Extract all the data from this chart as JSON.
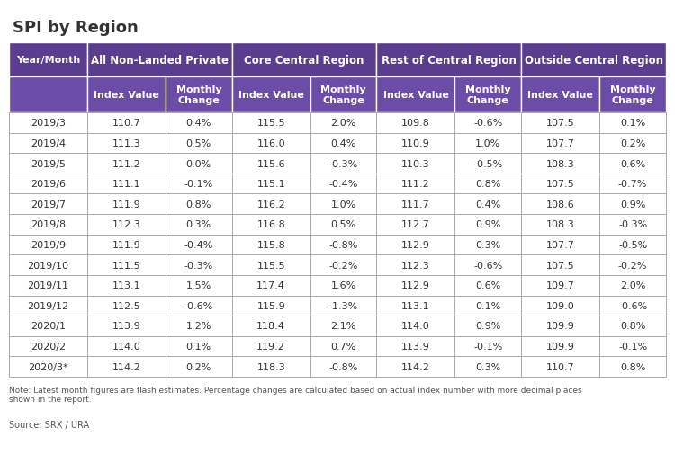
{
  "title": "SPI by Region",
  "col_groups": [
    {
      "label": "All Non-Landed Private"
    },
    {
      "label": "Core Central Region"
    },
    {
      "label": "Rest of Central Region"
    },
    {
      "label": "Outside Central Region"
    }
  ],
  "sub_headers": [
    "Index Value",
    "Monthly\nChange",
    "Index Value",
    "Monthly\nChange",
    "Index Value",
    "Monthly\nChange",
    "Index Value",
    "Monthly\nChange"
  ],
  "row_header": "Year/Month",
  "rows": [
    [
      "2019/3",
      "110.7",
      "0.4%",
      "115.5",
      "2.0%",
      "109.8",
      "-0.6%",
      "107.5",
      "0.1%"
    ],
    [
      "2019/4",
      "111.3",
      "0.5%",
      "116.0",
      "0.4%",
      "110.9",
      "1.0%",
      "107.7",
      "0.2%"
    ],
    [
      "2019/5",
      "111.2",
      "0.0%",
      "115.6",
      "-0.3%",
      "110.3",
      "-0.5%",
      "108.3",
      "0.6%"
    ],
    [
      "2019/6",
      "111.1",
      "-0.1%",
      "115.1",
      "-0.4%",
      "111.2",
      "0.8%",
      "107.5",
      "-0.7%"
    ],
    [
      "2019/7",
      "111.9",
      "0.8%",
      "116.2",
      "1.0%",
      "111.7",
      "0.4%",
      "108.6",
      "0.9%"
    ],
    [
      "2019/8",
      "112.3",
      "0.3%",
      "116.8",
      "0.5%",
      "112.7",
      "0.9%",
      "108.3",
      "-0.3%"
    ],
    [
      "2019/9",
      "111.9",
      "-0.4%",
      "115.8",
      "-0.8%",
      "112.9",
      "0.3%",
      "107.7",
      "-0.5%"
    ],
    [
      "2019/10",
      "111.5",
      "-0.3%",
      "115.5",
      "-0.2%",
      "112.3",
      "-0.6%",
      "107.5",
      "-0.2%"
    ],
    [
      "2019/11",
      "113.1",
      "1.5%",
      "117.4",
      "1.6%",
      "112.9",
      "0.6%",
      "109.7",
      "2.0%"
    ],
    [
      "2019/12",
      "112.5",
      "-0.6%",
      "115.9",
      "-1.3%",
      "113.1",
      "0.1%",
      "109.0",
      "-0.6%"
    ],
    [
      "2020/1",
      "113.9",
      "1.2%",
      "118.4",
      "2.1%",
      "114.0",
      "0.9%",
      "109.9",
      "0.8%"
    ],
    [
      "2020/2",
      "114.0",
      "0.1%",
      "119.2",
      "0.7%",
      "113.9",
      "-0.1%",
      "109.9",
      "-0.1%"
    ],
    [
      "2020/3*",
      "114.2",
      "0.2%",
      "118.3",
      "-0.8%",
      "114.2",
      "0.3%",
      "110.7",
      "0.8%"
    ]
  ],
  "note": "Note: Latest month figures are flash estimates. Percentage changes are calculated based on actual index number with more decimal places\nshown in the report.",
  "source": "Source: SRX / URA",
  "header_bg": "#5b3d8f",
  "subheader_bg": "#6b4da8",
  "header_text": "#ffffff",
  "row_bg": "#ffffff",
  "row_text": "#333333",
  "border_color": "#aaaaaa",
  "header_border": "#ffffff",
  "title_color": "#333333",
  "note_color": "#555555"
}
